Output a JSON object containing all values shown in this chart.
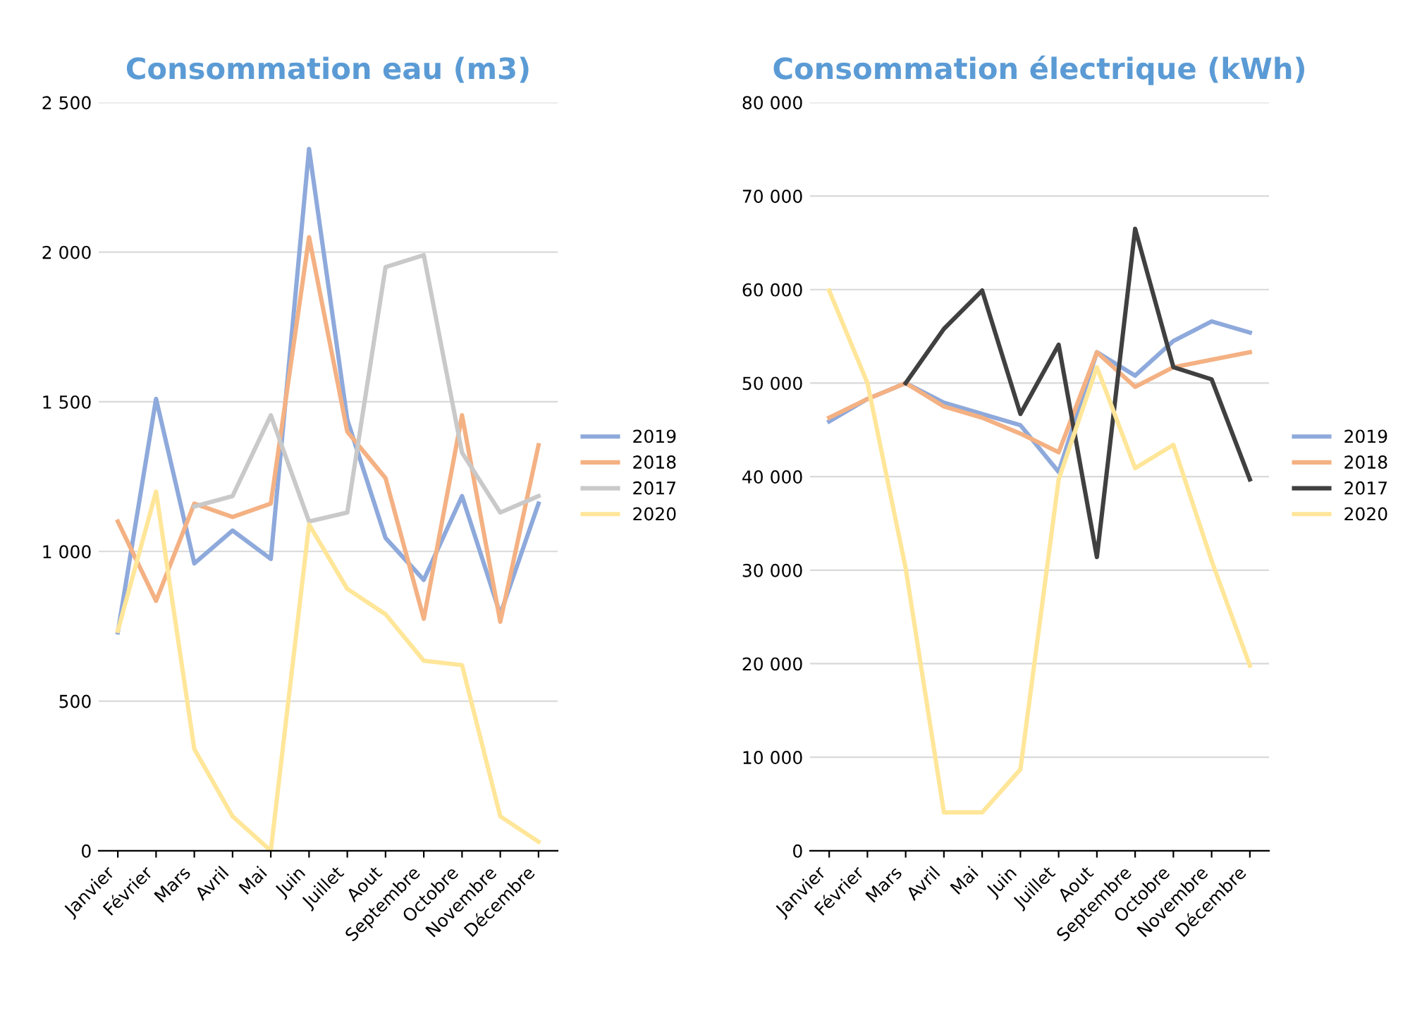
{
  "chart_data": [
    {
      "type": "line",
      "title": "Consommation eau (m3)",
      "categories": [
        "Janvier",
        "Février",
        "Mars",
        "Avril",
        "Mai",
        "Juin",
        "Juillet",
        "Aout",
        "Septembre",
        "Octobre",
        "Novembre",
        "Décembre"
      ],
      "series": [
        {
          "name": "2019",
          "color": "#8ea9db",
          "values": [
            730,
            1510,
            960,
            1070,
            975,
            2345,
            1440,
            1045,
            905,
            1185,
            790,
            1160
          ]
        },
        {
          "name": "2018",
          "color": "#f4b183",
          "values": [
            1100,
            835,
            1160,
            1115,
            1160,
            2050,
            1400,
            1245,
            775,
            1455,
            765,
            1355
          ]
        },
        {
          "name": "2017",
          "color": "#c9c9c9",
          "values": [
            null,
            null,
            1150,
            1185,
            1455,
            1100,
            1130,
            1950,
            1990,
            1330,
            1130,
            1185
          ]
        },
        {
          "name": "2020",
          "color": "#ffe699",
          "values": [
            735,
            1200,
            340,
            115,
            0,
            1090,
            875,
            790,
            635,
            620,
            115,
            30
          ]
        }
      ],
      "ylim": [
        0,
        2500
      ],
      "yticks": [
        {
          "value": 0,
          "label": "0"
        },
        {
          "value": 500,
          "label": "500"
        },
        {
          "value": 1000,
          "label": "1 000"
        },
        {
          "value": 1500,
          "label": "1 500"
        },
        {
          "value": 2000,
          "label": "2 000"
        },
        {
          "value": 2500,
          "label": "2 500"
        }
      ],
      "grid": "y",
      "legend": "right",
      "marker": "none",
      "line_style": "solid"
    },
    {
      "type": "line",
      "title": "Consommation électrique (kWh)",
      "categories": [
        "Janvier",
        "Février",
        "Mars",
        "Avril",
        "Mai",
        "Juin",
        "Juillet",
        "Aout",
        "Septembre",
        "Octobre",
        "Novembre",
        "Décembre"
      ],
      "series": [
        {
          "name": "2019",
          "color": "#8ea9db",
          "values": [
            45900,
            48300,
            50000,
            47900,
            46700,
            45500,
            40500,
            53300,
            50800,
            54500,
            56600,
            55400
          ]
        },
        {
          "name": "2018",
          "color": "#f4b183",
          "values": [
            46300,
            48300,
            50000,
            47500,
            46300,
            44600,
            42600,
            53300,
            49600,
            51700,
            52500,
            53300
          ]
        },
        {
          "name": "2017",
          "color": "#404040",
          "values": [
            null,
            null,
            50000,
            55800,
            59900,
            46700,
            54100,
            31400,
            66500,
            51700,
            50400,
            39700
          ]
        },
        {
          "name": "2020",
          "color": "#ffe699",
          "values": [
            59900,
            50000,
            30200,
            4100,
            4100,
            8700,
            39700,
            51700,
            40900,
            43400,
            31000,
            19800
          ]
        }
      ],
      "ylim": [
        0,
        80000
      ],
      "yticks": [
        {
          "value": 0,
          "label": "0"
        },
        {
          "value": 10000,
          "label": "10 000"
        },
        {
          "value": 20000,
          "label": "20 000"
        },
        {
          "value": 30000,
          "label": "30 000"
        },
        {
          "value": 40000,
          "label": "40 000"
        },
        {
          "value": 50000,
          "label": "50 000"
        },
        {
          "value": 60000,
          "label": "60 000"
        },
        {
          "value": 70000,
          "label": "70 000"
        },
        {
          "value": 80000,
          "label": "80 000"
        }
      ],
      "grid": "y",
      "legend": "right",
      "marker": "none",
      "line_style": "solid"
    }
  ]
}
